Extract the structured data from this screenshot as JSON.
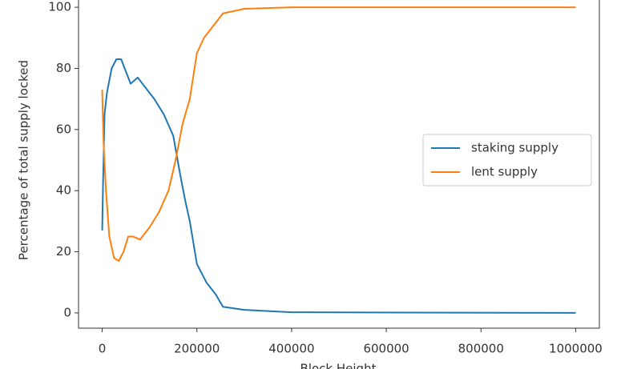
{
  "chart_data": {
    "type": "line",
    "xlabel": "Block Height",
    "ylabel": "Percentage of total supply locked",
    "xlim": [
      -50000,
      1050000
    ],
    "xticks": [
      0,
      200000,
      400000,
      600000,
      800000,
      1000000
    ],
    "ylim": [
      -5,
      105
    ],
    "yticks": [
      0,
      20,
      40,
      60,
      80,
      100
    ],
    "legend": "center right",
    "series": [
      {
        "name": "staking supply",
        "color": "#1f77b4",
        "x": [
          0,
          2000,
          5000,
          10000,
          20000,
          30000,
          40000,
          50000,
          60000,
          75000,
          90000,
          110000,
          130000,
          150000,
          165000,
          175000,
          185000,
          200000,
          220000,
          240000,
          255000,
          300000,
          400000,
          1000000
        ],
        "values": [
          27,
          44,
          65,
          72,
          80,
          83,
          83,
          79,
          75,
          77,
          74,
          70,
          65,
          58,
          45,
          37,
          30,
          16,
          10,
          6,
          2,
          1,
          0.2,
          0
        ]
      },
      {
        "name": "lent supply",
        "color": "#ff7f0e",
        "x": [
          0,
          3000,
          8000,
          15000,
          25000,
          35000,
          45000,
          55000,
          65000,
          80000,
          100000,
          120000,
          140000,
          155000,
          170000,
          185000,
          200000,
          215000,
          235000,
          255000,
          300000,
          400000,
          1000000
        ],
        "values": [
          73,
          55,
          40,
          25,
          18,
          17,
          20,
          25,
          25,
          24,
          28,
          33,
          40,
          50,
          62,
          70,
          85,
          90,
          94,
          98,
          99.5,
          100,
          100
        ]
      }
    ]
  }
}
